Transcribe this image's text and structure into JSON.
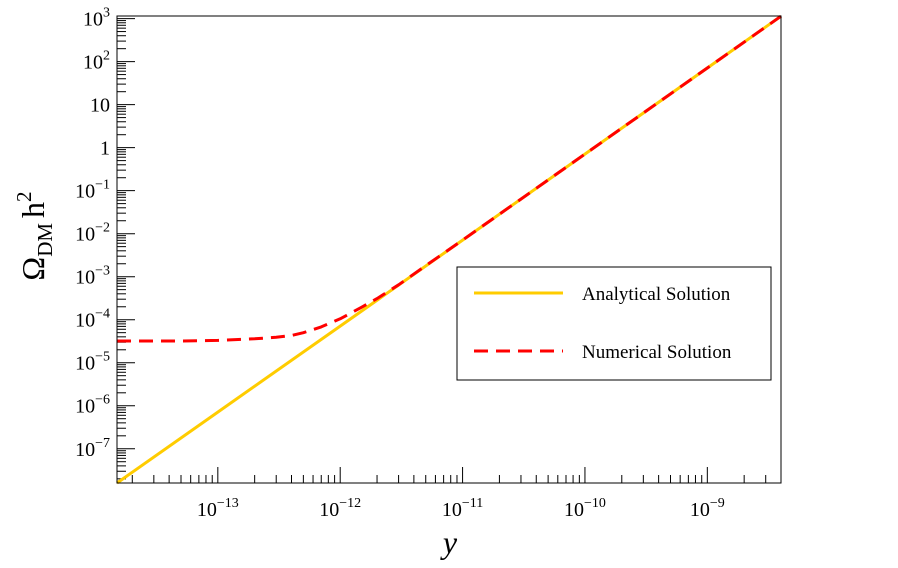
{
  "chart_data": {
    "type": "line",
    "xlabel": "y",
    "ylabel": {
      "main": "Ω",
      "sub": "DM",
      "unit": "h",
      "sup": "2"
    },
    "x_scale": "log",
    "y_scale": "log",
    "xlim": [
      1.5e-14,
      4e-09
    ],
    "ylim": [
      1.6e-08,
      1150.0
    ],
    "x_ticks": [
      {
        "base": "10",
        "exp": "−13",
        "value": 1e-13
      },
      {
        "base": "10",
        "exp": "−12",
        "value": 1e-12
      },
      {
        "base": "10",
        "exp": "−11",
        "value": 1e-11
      },
      {
        "base": "10",
        "exp": "−10",
        "value": 1e-10
      },
      {
        "base": "10",
        "exp": "−9",
        "value": 1e-09
      }
    ],
    "y_ticks": [
      {
        "base": "10",
        "exp": "−7",
        "value": 1e-07
      },
      {
        "base": "10",
        "exp": "−6",
        "value": 1e-06
      },
      {
        "base": "10",
        "exp": "−5",
        "value": 1e-05
      },
      {
        "base": "10",
        "exp": "−4",
        "value": 0.0001
      },
      {
        "base": "10",
        "exp": "−3",
        "value": 0.001
      },
      {
        "base": "10",
        "exp": "−2",
        "value": 0.01
      },
      {
        "base": "10",
        "exp": "−1",
        "value": 0.1
      },
      {
        "base": "1",
        "exp": "",
        "value": 1
      },
      {
        "base": "10",
        "exp": "",
        "value": 10
      },
      {
        "base": "10",
        "exp": "2",
        "value": 100
      },
      {
        "base": "10",
        "exp": "3",
        "value": 1000
      }
    ],
    "grid": false,
    "legend_position": "right",
    "series": [
      {
        "name": "Analytical Solution",
        "color": "#ffcc00",
        "style": "solid",
        "x": [
          1.5e-14,
          1e-13,
          1e-12,
          1e-11,
          1e-10,
          1e-09,
          4e-09
        ],
        "y": [
          1.6e-08,
          7.1e-07,
          7.1e-05,
          0.0071,
          0.71,
          71,
          1140
        ]
      },
      {
        "name": "Numerical Solution",
        "color": "#ff0000",
        "style": "dashed",
        "x": [
          1.5e-14,
          5e-14,
          1e-13,
          2e-13,
          3e-13,
          4e-13,
          5e-13,
          7e-13,
          1e-12,
          1.5e-12,
          2e-12,
          3e-12,
          5e-12,
          1e-11,
          1e-10,
          1e-09,
          4e-09
        ],
        "y": [
          3.2e-05,
          3.2e-05,
          3.3e-05,
          3.6e-05,
          3.9e-05,
          4.3e-05,
          5e-05,
          6.8e-05,
          0.000105,
          0.000195,
          0.00031,
          0.00065,
          0.0018,
          0.0071,
          0.71,
          71,
          1140
        ]
      }
    ]
  }
}
